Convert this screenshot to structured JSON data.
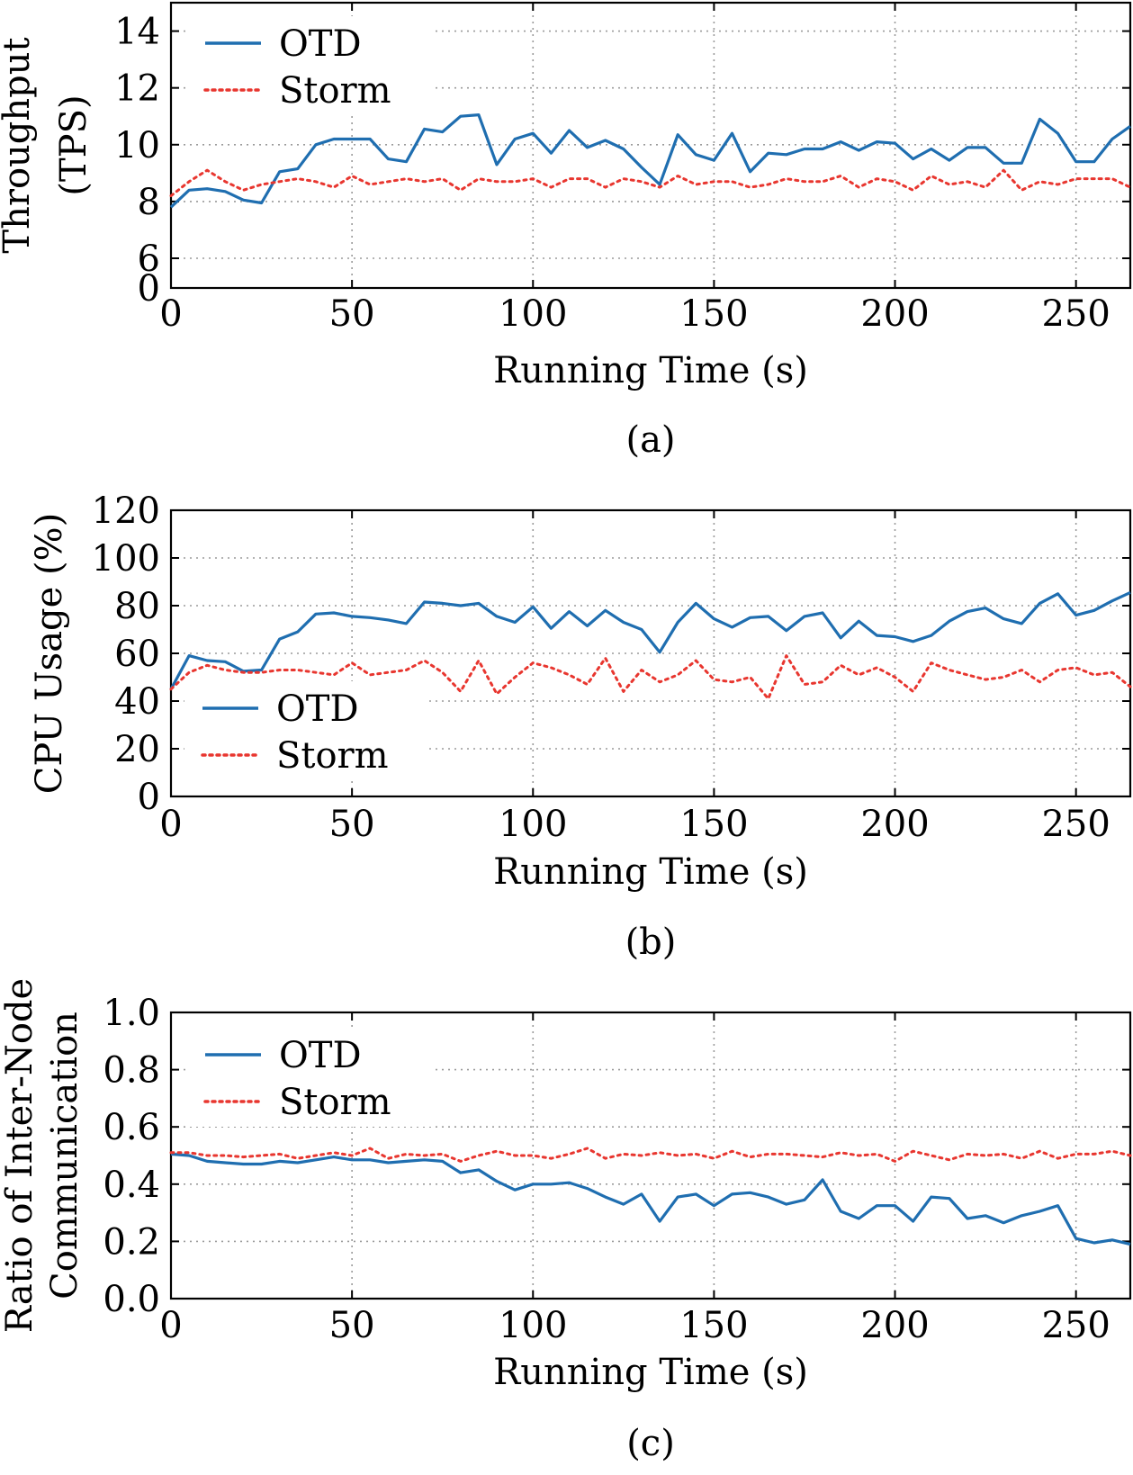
{
  "chart_data": [
    {
      "type": "line",
      "caption": "(a)",
      "xlabel": "Running Time (s)",
      "ylabel": [
        "Throughput",
        "(TPS)"
      ],
      "xlim": [
        0,
        265
      ],
      "ylim": [
        0,
        15
      ],
      "y_axis_break": true,
      "xticks": [
        0,
        50,
        100,
        150,
        200,
        250
      ],
      "yticks": [
        0,
        6,
        8,
        10,
        12,
        14
      ],
      "grid": true,
      "legend_position": "top-left",
      "x": [
        0,
        5,
        10,
        15,
        20,
        25,
        30,
        35,
        40,
        45,
        50,
        55,
        60,
        65,
        70,
        75,
        80,
        85,
        90,
        95,
        100,
        105,
        110,
        115,
        120,
        125,
        130,
        135,
        140,
        145,
        150,
        155,
        160,
        165,
        170,
        175,
        180,
        185,
        190,
        195,
        200,
        205,
        210,
        215,
        220,
        225,
        230,
        235,
        240,
        245,
        250,
        255,
        260,
        265
      ],
      "series": [
        {
          "name": "OTD",
          "style": "solid",
          "color": "#1f6eb0",
          "values": [
            7.8,
            8.4,
            8.45,
            8.35,
            8.05,
            7.95,
            9.05,
            9.15,
            10.0,
            10.2,
            10.2,
            10.2,
            9.5,
            9.4,
            10.55,
            10.45,
            11.0,
            11.05,
            9.3,
            10.2,
            10.4,
            9.7,
            10.5,
            9.9,
            10.15,
            9.85,
            9.2,
            8.6,
            10.35,
            9.65,
            9.45,
            10.4,
            9.05,
            9.7,
            9.65,
            9.85,
            9.85,
            10.1,
            9.8,
            10.1,
            10.05,
            9.5,
            9.85,
            9.45,
            9.9,
            9.9,
            9.35,
            9.35,
            10.9,
            10.4,
            9.4,
            9.4,
            10.2,
            10.65
          ]
        },
        {
          "name": "Storm",
          "style": "dotted",
          "color": "#e8362f",
          "values": [
            8.2,
            8.7,
            9.1,
            8.7,
            8.4,
            8.6,
            8.7,
            8.8,
            8.7,
            8.5,
            8.9,
            8.6,
            8.7,
            8.8,
            8.7,
            8.8,
            8.4,
            8.8,
            8.7,
            8.7,
            8.8,
            8.5,
            8.8,
            8.8,
            8.5,
            8.8,
            8.7,
            8.5,
            8.9,
            8.6,
            8.7,
            8.7,
            8.5,
            8.6,
            8.8,
            8.7,
            8.7,
            8.9,
            8.5,
            8.8,
            8.7,
            8.4,
            8.9,
            8.6,
            8.7,
            8.5,
            9.1,
            8.4,
            8.7,
            8.6,
            8.8,
            8.8,
            8.8,
            8.5
          ]
        }
      ]
    },
    {
      "type": "line",
      "caption": "(b)",
      "xlabel": "Running Time (s)",
      "ylabel": [
        "CPU Usage (%)"
      ],
      "xlim": [
        0,
        265
      ],
      "ylim": [
        0,
        120
      ],
      "xticks": [
        0,
        50,
        100,
        150,
        200,
        250
      ],
      "yticks": [
        0,
        20,
        40,
        60,
        80,
        100,
        120
      ],
      "grid": true,
      "legend_position": "bottom-left",
      "x": [
        0,
        5,
        10,
        15,
        20,
        25,
        30,
        35,
        40,
        45,
        50,
        55,
        60,
        65,
        70,
        75,
        80,
        85,
        90,
        95,
        100,
        105,
        110,
        115,
        120,
        125,
        130,
        135,
        140,
        145,
        150,
        155,
        160,
        165,
        170,
        175,
        180,
        185,
        190,
        195,
        200,
        205,
        210,
        215,
        220,
        225,
        230,
        235,
        240,
        245,
        250,
        255,
        260,
        265
      ],
      "series": [
        {
          "name": "OTD",
          "style": "solid",
          "color": "#1f6eb0",
          "values": [
            45,
            59,
            57,
            56.5,
            52.5,
            53,
            66,
            69,
            76.5,
            77,
            75.5,
            75,
            74,
            72.5,
            81.5,
            81,
            80,
            81,
            75.5,
            73,
            79.5,
            70.5,
            77.5,
            71.5,
            78,
            73,
            70,
            60.5,
            73,
            81,
            74.5,
            71,
            75,
            75.5,
            69.5,
            75.5,
            77,
            66.5,
            73.5,
            67.5,
            67,
            65,
            67.5,
            73.5,
            77.5,
            79,
            74.5,
            72.5,
            81,
            85,
            76,
            78,
            82,
            85.5
          ]
        },
        {
          "name": "Storm",
          "style": "dotted",
          "color": "#e8362f",
          "values": [
            45,
            52,
            55,
            53,
            52,
            52,
            53,
            53,
            52,
            51,
            56,
            51,
            52,
            53,
            57,
            52,
            44,
            57,
            43,
            50,
            56,
            54,
            51,
            47,
            58,
            44,
            53,
            48,
            51,
            57,
            49,
            48,
            50,
            41,
            59,
            47,
            48,
            55,
            51,
            54,
            50,
            44,
            56,
            53,
            51,
            49,
            50,
            53,
            48,
            53,
            54,
            51,
            52,
            46
          ]
        }
      ]
    },
    {
      "type": "line",
      "caption": "(c)",
      "xlabel": "Running Time (s)",
      "ylabel": [
        "Ratio of Inter-Node",
        "Communication"
      ],
      "xlim": [
        0,
        265
      ],
      "ylim": [
        0,
        1.0
      ],
      "xticks": [
        0,
        50,
        100,
        150,
        200,
        250
      ],
      "yticks": [
        "0.0",
        "0.2",
        "0.4",
        "0.6",
        "0.8",
        "1.0"
      ],
      "grid": true,
      "legend_position": "top-left",
      "x": [
        0,
        5,
        10,
        15,
        20,
        25,
        30,
        35,
        40,
        45,
        50,
        55,
        60,
        65,
        70,
        75,
        80,
        85,
        90,
        95,
        100,
        105,
        110,
        115,
        120,
        125,
        130,
        135,
        140,
        145,
        150,
        155,
        160,
        165,
        170,
        175,
        180,
        185,
        190,
        195,
        200,
        205,
        210,
        215,
        220,
        225,
        230,
        235,
        240,
        245,
        250,
        255,
        260,
        265
      ],
      "series": [
        {
          "name": "OTD",
          "style": "solid",
          "color": "#1f6eb0",
          "values": [
            0.505,
            0.5,
            0.48,
            0.475,
            0.47,
            0.47,
            0.48,
            0.475,
            0.485,
            0.495,
            0.485,
            0.485,
            0.475,
            0.48,
            0.485,
            0.48,
            0.44,
            0.45,
            0.41,
            0.38,
            0.4,
            0.4,
            0.405,
            0.385,
            0.355,
            0.33,
            0.365,
            0.27,
            0.355,
            0.365,
            0.325,
            0.365,
            0.37,
            0.355,
            0.33,
            0.345,
            0.415,
            0.305,
            0.28,
            0.325,
            0.325,
            0.27,
            0.355,
            0.35,
            0.28,
            0.29,
            0.265,
            0.29,
            0.305,
            0.325,
            0.21,
            0.195,
            0.205,
            0.19
          ]
        },
        {
          "name": "Storm",
          "style": "dotted",
          "color": "#e8362f",
          "values": [
            0.51,
            0.51,
            0.5,
            0.5,
            0.495,
            0.5,
            0.505,
            0.49,
            0.5,
            0.51,
            0.5,
            0.525,
            0.49,
            0.505,
            0.5,
            0.505,
            0.48,
            0.5,
            0.515,
            0.5,
            0.5,
            0.49,
            0.505,
            0.525,
            0.49,
            0.505,
            0.5,
            0.51,
            0.5,
            0.505,
            0.49,
            0.515,
            0.495,
            0.505,
            0.505,
            0.5,
            0.495,
            0.51,
            0.5,
            0.505,
            0.48,
            0.515,
            0.5,
            0.485,
            0.505,
            0.5,
            0.505,
            0.49,
            0.515,
            0.49,
            0.505,
            0.505,
            0.515,
            0.5
          ]
        }
      ]
    }
  ]
}
